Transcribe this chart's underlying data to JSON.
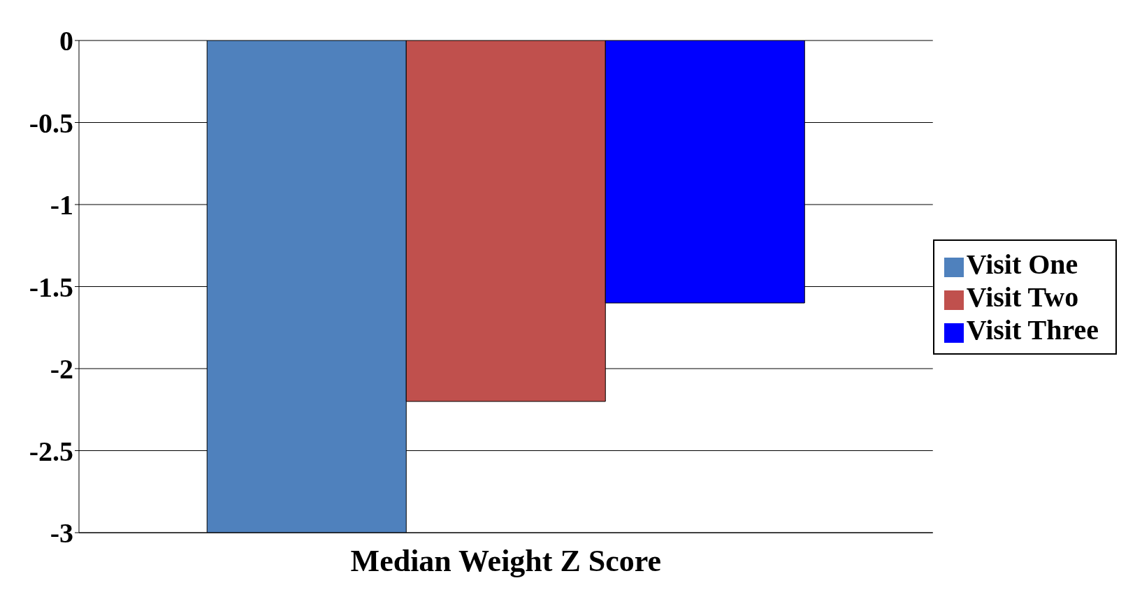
{
  "chart_data": {
    "type": "bar",
    "categories": [
      "Median Weight Z Score"
    ],
    "series": [
      {
        "name": "Visit One",
        "color": "#4f81bd",
        "values": [
          -3.0
        ]
      },
      {
        "name": "Visit Two",
        "color": "#c0504d",
        "values": [
          -2.2
        ]
      },
      {
        "name": "Visit Three",
        "color": "#0000ff",
        "values": [
          -1.6
        ]
      }
    ],
    "ylim": [
      -3,
      0
    ],
    "yticks": [
      0,
      -0.5,
      -1,
      -1.5,
      -2,
      -2.5,
      -3
    ],
    "grid": "y",
    "legend": "right"
  }
}
